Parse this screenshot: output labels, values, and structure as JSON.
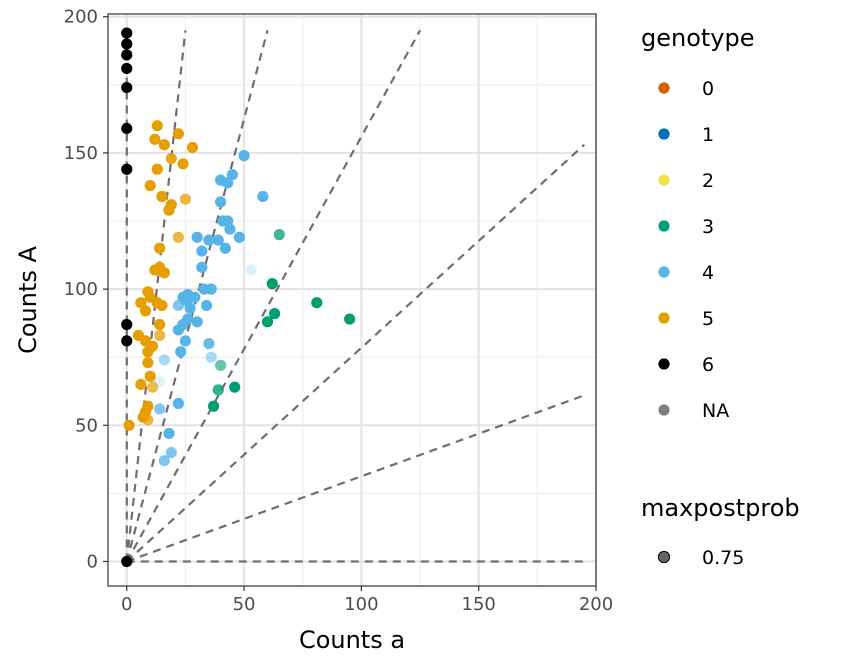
{
  "chart_data": {
    "type": "scatter",
    "xlabel": "Counts a",
    "ylabel": "Counts A",
    "xlim": [
      -8,
      200
    ],
    "ylim": [
      -9,
      201
    ],
    "x_ticks": [
      0,
      50,
      100,
      150,
      200
    ],
    "y_ticks": [
      0,
      50,
      100,
      150,
      200
    ],
    "x_tick_labels": [
      "0",
      "50",
      "100",
      "150",
      "200"
    ],
    "y_tick_labels": [
      "0",
      "50",
      "100",
      "150",
      "200"
    ],
    "grid": true,
    "legend_position": "right",
    "legend": {
      "genotype_title": "genotype",
      "maxpostprob_title": "maxpostprob",
      "genotypes": [
        {
          "label": "0",
          "color": "#D55E00"
        },
        {
          "label": "1",
          "color": "#0072B2"
        },
        {
          "label": "2",
          "color": "#F0E442"
        },
        {
          "label": "3",
          "color": "#009E73"
        },
        {
          "label": "4",
          "color": "#56B4E9"
        },
        {
          "label": "5",
          "color": "#E69F00"
        },
        {
          "label": "6",
          "color": "#000000"
        },
        {
          "label": "NA",
          "color": "#7F7F7F"
        }
      ],
      "maxpostprob_labels": [
        "0.75"
      ]
    },
    "guide_lines": [
      {
        "x": 0,
        "y": 195
      },
      {
        "x": 25,
        "y": 195
      },
      {
        "x": 60,
        "y": 195
      },
      {
        "x": 125,
        "y": 195
      },
      {
        "x": 195,
        "y": 153
      },
      {
        "x": 195,
        "y": 61
      },
      {
        "x": 195,
        "y": 0
      }
    ],
    "series": [
      {
        "name": "6",
        "color": "#000000",
        "points": [
          [
            0,
            194,
            1
          ],
          [
            0,
            190,
            1
          ],
          [
            0,
            186,
            1
          ],
          [
            0,
            181,
            1
          ],
          [
            0,
            174,
            1
          ],
          [
            0,
            159,
            1
          ],
          [
            0,
            144,
            1
          ],
          [
            0,
            87,
            1
          ],
          [
            0,
            81,
            1
          ],
          [
            0,
            0,
            1
          ]
        ]
      },
      {
        "name": "5",
        "color": "#E69F00",
        "points": [
          [
            13,
            160,
            1
          ],
          [
            22,
            157,
            1
          ],
          [
            12,
            155,
            1
          ],
          [
            16,
            153,
            1
          ],
          [
            28,
            152,
            1
          ],
          [
            19,
            148,
            0.9
          ],
          [
            24,
            146,
            1
          ],
          [
            13,
            144,
            1
          ],
          [
            10,
            138,
            1
          ],
          [
            15,
            134,
            1
          ],
          [
            25,
            133,
            0.75
          ],
          [
            19,
            131,
            1
          ],
          [
            18,
            129,
            1
          ],
          [
            22,
            119,
            0.75
          ],
          [
            14,
            115,
            1
          ],
          [
            12,
            107,
            1
          ],
          [
            14,
            108,
            1
          ],
          [
            16,
            106,
            1
          ],
          [
            9,
            99,
            1
          ],
          [
            10,
            97,
            1
          ],
          [
            6,
            95,
            1
          ],
          [
            13,
            95,
            1
          ],
          [
            15,
            94,
            1
          ],
          [
            8,
            92,
            1
          ],
          [
            14,
            87,
            1
          ],
          [
            5,
            83,
            1
          ],
          [
            14,
            83,
            0.75
          ],
          [
            8,
            81,
            1
          ],
          [
            11,
            79,
            1
          ],
          [
            9,
            77,
            1
          ],
          [
            9,
            73,
            1
          ],
          [
            10,
            68,
            1
          ],
          [
            6,
            65,
            1
          ],
          [
            11,
            64,
            0.7
          ],
          [
            9,
            57,
            1
          ],
          [
            8,
            55,
            1
          ],
          [
            7,
            53,
            1
          ],
          [
            9,
            52,
            0.75
          ],
          [
            1,
            50,
            1
          ]
        ]
      },
      {
        "name": "4",
        "color": "#56B4E9",
        "points": [
          [
            50,
            149,
            1
          ],
          [
            40,
            140,
            1
          ],
          [
            43,
            139,
            1
          ],
          [
            45,
            142,
            1
          ],
          [
            58,
            134,
            1
          ],
          [
            40,
            132,
            1
          ],
          [
            41,
            125,
            1
          ],
          [
            43,
            125,
            1
          ],
          [
            44,
            122,
            1
          ],
          [
            30,
            119,
            1
          ],
          [
            35,
            118,
            1
          ],
          [
            39,
            118,
            1
          ],
          [
            48,
            119,
            1
          ],
          [
            42,
            115,
            1
          ],
          [
            32,
            114,
            1
          ],
          [
            53,
            107,
            0.2
          ],
          [
            32,
            108,
            1
          ],
          [
            24,
            97,
            1
          ],
          [
            26,
            98,
            1
          ],
          [
            25,
            96,
            1
          ],
          [
            27,
            97,
            1
          ],
          [
            29,
            97,
            1
          ],
          [
            33,
            100,
            1
          ],
          [
            36,
            100,
            1
          ],
          [
            22,
            94,
            0.75
          ],
          [
            27,
            93,
            1
          ],
          [
            34,
            94,
            1
          ],
          [
            30,
            88,
            1
          ],
          [
            26,
            89,
            1
          ],
          [
            22,
            85,
            1
          ],
          [
            24,
            87,
            1
          ],
          [
            25,
            81,
            1
          ],
          [
            35,
            80,
            0.9
          ],
          [
            23,
            77,
            1
          ],
          [
            36,
            75,
            0.5
          ],
          [
            16,
            74,
            0.5
          ],
          [
            22,
            58,
            1
          ],
          [
            14,
            56,
            0.75
          ],
          [
            18,
            47,
            1
          ],
          [
            19,
            40,
            0.75
          ],
          [
            16,
            37,
            0.75
          ],
          [
            14,
            66,
            0.2
          ]
        ]
      },
      {
        "name": "3",
        "color": "#009E73",
        "points": [
          [
            65,
            120,
            0.75
          ],
          [
            62,
            102,
            1
          ],
          [
            81,
            95,
            1
          ],
          [
            63,
            91,
            1
          ],
          [
            60,
            88,
            1
          ],
          [
            95,
            89,
            1
          ],
          [
            40,
            72,
            0.6
          ],
          [
            46,
            64,
            1
          ],
          [
            39,
            63,
            0.8
          ],
          [
            37,
            57,
            1
          ]
        ]
      }
    ]
  }
}
